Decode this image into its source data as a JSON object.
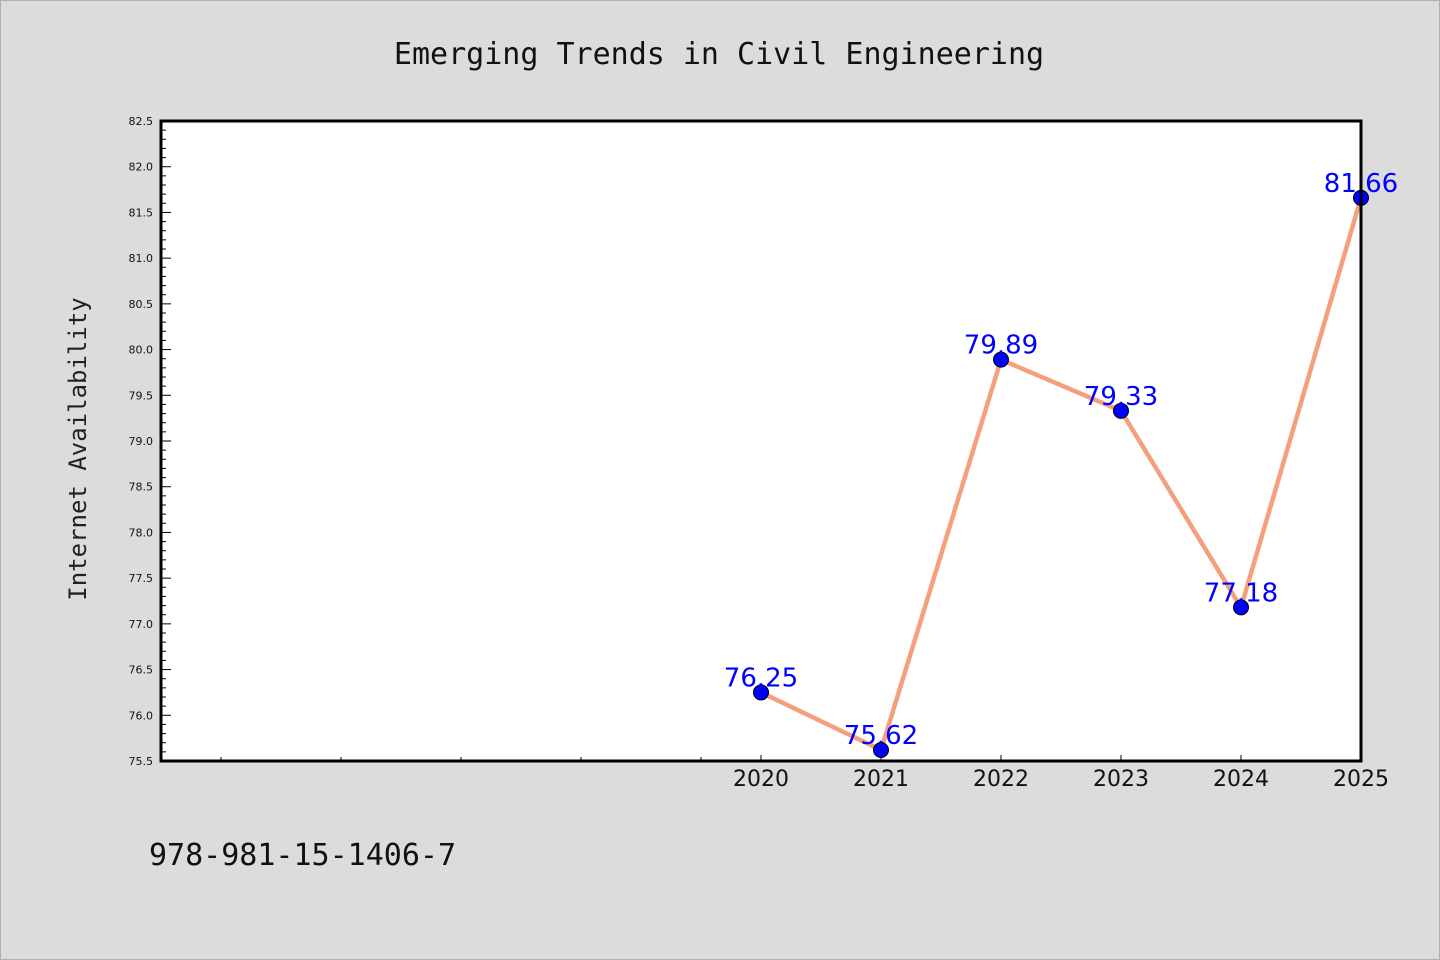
{
  "chart_data": {
    "type": "line",
    "title": "Emerging Trends in Civil Engineering",
    "xlabel": "",
    "ylabel": "Internet Availability",
    "categories": [
      "2020",
      "2021",
      "2022",
      "2023",
      "2024",
      "2025"
    ],
    "series": [
      {
        "values": [
          76.25,
          75.62,
          79.89,
          79.33,
          77.18,
          81.66
        ],
        "line_color": "#f4a07e",
        "marker_color": "#0000ff"
      }
    ],
    "data_labels": [
      "76.25",
      "75.62",
      "79.89",
      "79.33",
      "77.18",
      "81.66"
    ],
    "ylim": [
      75.5,
      82.5
    ],
    "yticks": [
      "75.5",
      "76.0",
      "76.5",
      "77.0",
      "77.5",
      "78.0",
      "78.5",
      "79.0",
      "79.5",
      "80.0",
      "80.5",
      "81.0",
      "81.5",
      "82.0",
      "82.5"
    ],
    "grid": false,
    "legend": "none"
  },
  "footer": {
    "text": "978-981-15-1406-7"
  }
}
